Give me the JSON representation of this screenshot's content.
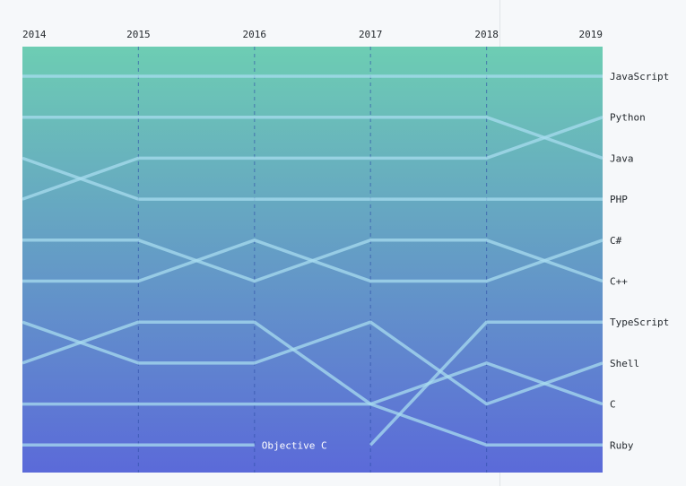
{
  "colors": {
    "gradient_top": "#6dcdb3",
    "gradient_bottom": "#5b6ad9",
    "line": "#a8dcef",
    "grid": "#2f4fa8",
    "label": "#24292e",
    "inline_label": "#ffffff"
  },
  "chart_data": {
    "type": "line",
    "title": "",
    "xlabel": "",
    "ylabel": "",
    "x": [
      "2014",
      "2015",
      "2016",
      "2017",
      "2018",
      "2019"
    ],
    "y_scale": "rank (1 = top)",
    "ylim": [
      1,
      10
    ],
    "grid": "vertical dashed",
    "series": [
      {
        "name": "JavaScript",
        "values": [
          1,
          1,
          1,
          1,
          1,
          1
        ],
        "label": "end"
      },
      {
        "name": "Python",
        "values": [
          4,
          3,
          3,
          3,
          3,
          2
        ],
        "label": "end"
      },
      {
        "name": "Java",
        "values": [
          2,
          2,
          2,
          2,
          2,
          3
        ],
        "label": "end"
      },
      {
        "name": "PHP",
        "values": [
          3,
          4,
          4,
          4,
          4,
          4
        ],
        "label": "end"
      },
      {
        "name": "C#",
        "values": [
          6,
          6,
          5,
          6,
          6,
          5
        ],
        "label": "end"
      },
      {
        "name": "C++",
        "values": [
          5,
          5,
          6,
          5,
          5,
          6
        ],
        "label": "end"
      },
      {
        "name": "TypeScript",
        "values": [
          null,
          null,
          null,
          10,
          7,
          7
        ],
        "label": "end"
      },
      {
        "name": "Shell",
        "values": [
          7,
          8,
          8,
          7,
          9,
          8
        ],
        "label": "end"
      },
      {
        "name": "C",
        "values": [
          8,
          7,
          7,
          9,
          8,
          9
        ],
        "label": "end"
      },
      {
        "name": "Ruby",
        "values": [
          9,
          9,
          9,
          9,
          10,
          10
        ],
        "label": "end"
      },
      {
        "name": "Objective C",
        "values": [
          10,
          10,
          10,
          null,
          null,
          null
        ],
        "label": "inline"
      }
    ]
  }
}
